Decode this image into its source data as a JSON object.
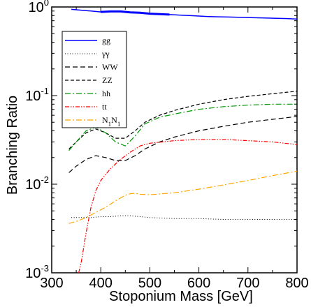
{
  "chart_data": {
    "type": "line",
    "title": "",
    "xlabel": "Stoponium Mass  [GeV]",
    "ylabel": "Branching  Ratio",
    "xlim": [
      300,
      800
    ],
    "ylim": [
      0.001,
      1
    ],
    "yscale": "log",
    "x_ticks": [
      300,
      400,
      500,
      600,
      700,
      800
    ],
    "x_tick_labels": [
      "300",
      "400",
      "500",
      "600",
      "700",
      "800"
    ],
    "y_ticks": [
      {
        "value": 0.001,
        "base": "10",
        "exp": "-3"
      },
      {
        "value": 0.01,
        "base": "10",
        "exp": "-2"
      },
      {
        "value": 0.1,
        "base": "10",
        "exp": "-1"
      },
      {
        "value": 1,
        "base": "10",
        "exp": "0"
      }
    ],
    "grid": false,
    "legend_position": "top-left",
    "series": [
      {
        "name": "gg",
        "legend_html": "gg",
        "color": "#0000ff",
        "dash": "",
        "width": 1.5,
        "x": [
          340,
          360,
          380,
          400,
          420,
          440,
          460,
          480,
          500,
          520,
          540,
          560,
          580,
          600,
          620,
          640,
          660,
          680,
          700,
          720,
          740,
          760,
          780,
          800
        ],
        "y": [
          0.94,
          0.92,
          0.9,
          0.88,
          0.89,
          0.89,
          0.87,
          0.86,
          0.84,
          0.83,
          0.82,
          0.81,
          0.8,
          0.79,
          0.78,
          0.775,
          0.77,
          0.765,
          0.76,
          0.755,
          0.75,
          0.745,
          0.74,
          0.73
        ]
      },
      {
        "name": "γγ",
        "legend_html": "γγ",
        "color": "#000000",
        "dash": "1,2.5",
        "width": 1,
        "x": [
          340,
          360,
          380,
          400,
          420,
          440,
          460,
          480,
          500,
          550,
          600,
          650,
          700,
          750,
          800
        ],
        "y": [
          0.0042,
          0.0042,
          0.0042,
          0.0043,
          0.0043,
          0.0044,
          0.0044,
          0.0043,
          0.0042,
          0.0041,
          0.0041,
          0.004,
          0.004,
          0.004,
          0.004
        ]
      },
      {
        "name": "WW",
        "legend_html": "WW",
        "color": "#000000",
        "dash": "7,4",
        "width": 1.2,
        "x": [
          335,
          350,
          370,
          390,
          410,
          430,
          450,
          470,
          490,
          520,
          550,
          600,
          650,
          700,
          750,
          800
        ],
        "y": [
          0.0135,
          0.016,
          0.019,
          0.021,
          0.02,
          0.0185,
          0.0185,
          0.021,
          0.025,
          0.03,
          0.034,
          0.04,
          0.045,
          0.05,
          0.054,
          0.058
        ]
      },
      {
        "name": "ZZ",
        "legend_html": "ZZ",
        "color": "#000000",
        "dash": "5,3",
        "width": 1.2,
        "x": [
          335,
          350,
          370,
          390,
          410,
          430,
          450,
          470,
          490,
          520,
          550,
          600,
          650,
          700,
          750,
          800
        ],
        "y": [
          0.025,
          0.03,
          0.038,
          0.042,
          0.038,
          0.033,
          0.033,
          0.04,
          0.05,
          0.06,
          0.068,
          0.08,
          0.09,
          0.098,
          0.105,
          0.112
        ]
      },
      {
        "name": "hh",
        "legend_html": "hh",
        "color": "#009900",
        "dash": "8,3,2,3",
        "width": 1.2,
        "x": [
          335,
          350,
          370,
          390,
          410,
          430,
          450,
          470,
          490,
          520,
          550,
          600,
          650,
          700,
          750,
          800
        ],
        "y": [
          0.024,
          0.03,
          0.04,
          0.044,
          0.038,
          0.03,
          0.027,
          0.035,
          0.048,
          0.057,
          0.062,
          0.07,
          0.075,
          0.078,
          0.08,
          0.08
        ]
      },
      {
        "name": "tt",
        "legend_html": "tt",
        "color": "#ff0000",
        "dash": "6,2,1.5,2,1.5,2",
        "width": 1.2,
        "x": [
          355,
          360,
          365,
          370,
          380,
          390,
          400,
          420,
          440,
          460,
          480,
          500,
          550,
          600,
          650,
          700,
          750,
          800
        ],
        "y": [
          0.001,
          0.0013,
          0.0019,
          0.0028,
          0.0055,
          0.0085,
          0.011,
          0.015,
          0.019,
          0.023,
          0.027,
          0.029,
          0.031,
          0.032,
          0.032,
          0.031,
          0.03,
          0.028
        ]
      },
      {
        "name": "N1N1",
        "legend_html": "N<tspan baseline-shift='sub' font-size='9'>1</tspan>N<tspan baseline-shift='sub' font-size='9'>1</tspan>",
        "color": "#ffa500",
        "dash": "8,3,2,3",
        "width": 1.2,
        "x": [
          335,
          350,
          370,
          390,
          410,
          430,
          450,
          460,
          470,
          480,
          500,
          550,
          600,
          650,
          700,
          750,
          800
        ],
        "y": [
          0.0036,
          0.0038,
          0.0042,
          0.0048,
          0.0055,
          0.0065,
          0.0075,
          0.0078,
          0.0079,
          0.0077,
          0.0076,
          0.008,
          0.0088,
          0.0098,
          0.011,
          0.0125,
          0.014
        ]
      }
    ]
  }
}
